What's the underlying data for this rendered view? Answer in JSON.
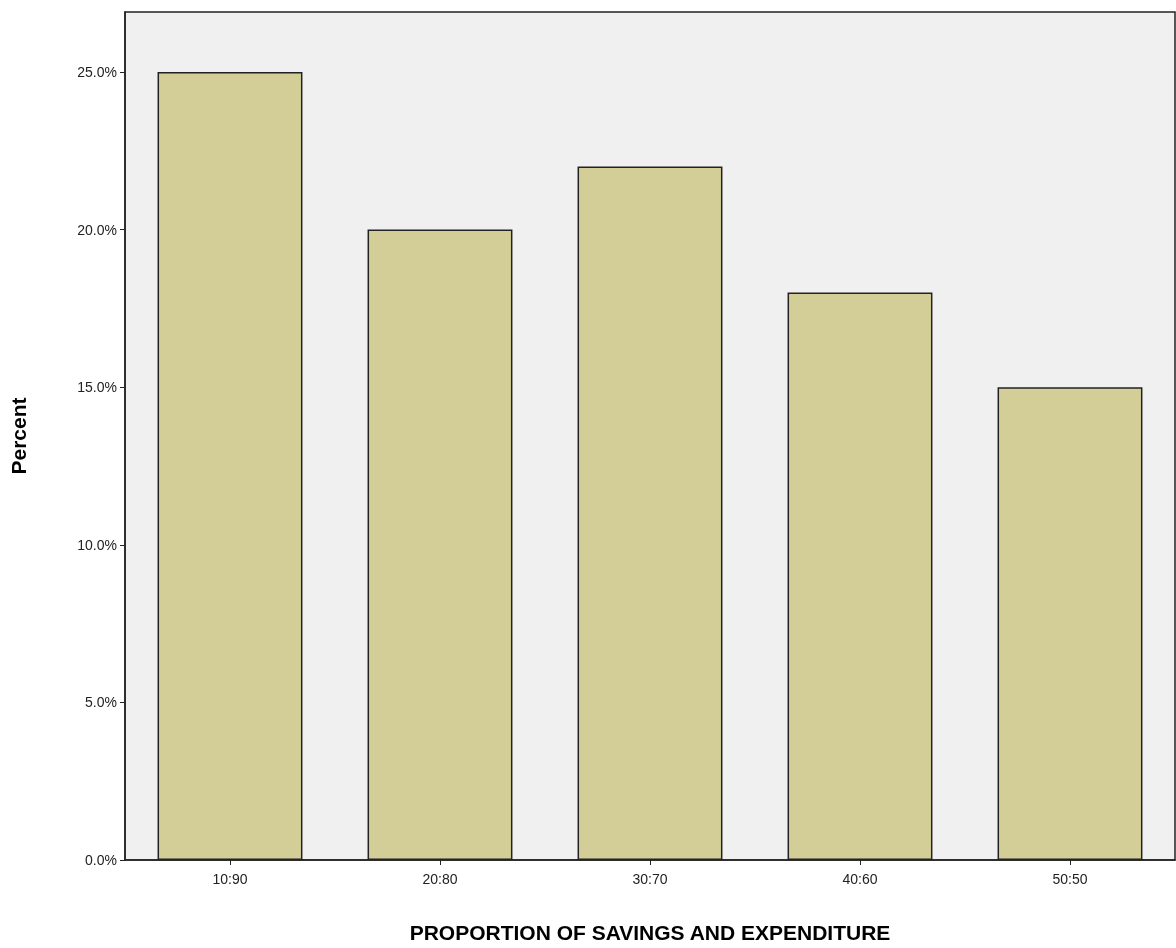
{
  "chart_data": {
    "type": "bar",
    "xlabel": "PROPORTION OF SAVINGS AND EXPENDITURE",
    "ylabel": "Percent",
    "categories": [
      "10:90",
      "20:80",
      "30:70",
      "40:60",
      "50:50"
    ],
    "values": [
      25,
      20,
      22,
      18,
      15
    ],
    "color": "#d3ce97",
    "ylim": [
      0,
      26.9
    ],
    "yticks": [
      {
        "value": 0,
        "label": "0.0%"
      },
      {
        "value": 5,
        "label": "5.0%"
      },
      {
        "value": 10,
        "label": "10.0%"
      },
      {
        "value": 15,
        "label": "15.0%"
      },
      {
        "value": 20,
        "label": "20.0%"
      },
      {
        "value": 25,
        "label": "25.0%"
      }
    ],
    "grid": false
  }
}
